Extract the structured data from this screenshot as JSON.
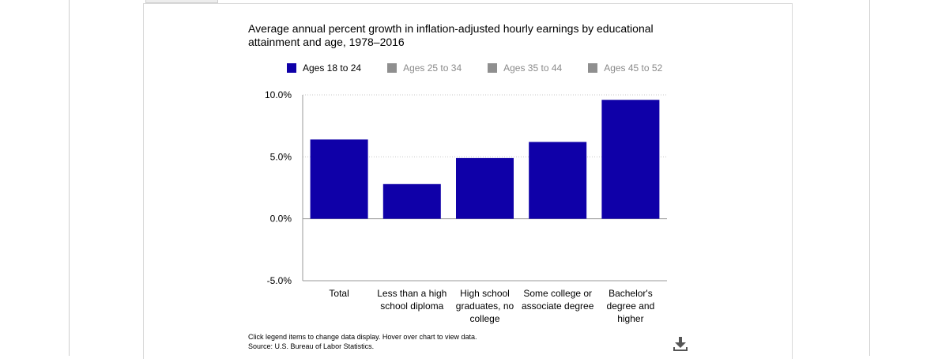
{
  "chart_data": {
    "type": "bar",
    "title": "Average annual percent growth in inflation-adjusted hourly earnings by educational attainment and age, 1978–2016",
    "categories": [
      [
        "Total"
      ],
      [
        "Less than a high",
        "school diploma"
      ],
      [
        "High school",
        "graduates, no",
        "college"
      ],
      [
        "Some college or",
        "associate degree"
      ],
      [
        "Bachelor's",
        "degree and",
        "higher"
      ]
    ],
    "series": [
      {
        "name": "Ages 18 to 24",
        "values": [
          6.4,
          2.8,
          4.9,
          6.2,
          9.6
        ],
        "active": true
      },
      {
        "name": "Ages 25 to 34",
        "active": false
      },
      {
        "name": "Ages 35 to 44",
        "active": false
      },
      {
        "name": "Ages 45 to 52",
        "active": false
      }
    ],
    "ylim": [
      -5,
      10
    ],
    "yticks": [
      "-5.0%",
      "0.0%",
      "5.0%",
      "10.0%"
    ],
    "ytick_values": [
      -5,
      0,
      5,
      10
    ],
    "grid": true,
    "legend_position": "top",
    "xlabel": "",
    "ylabel": ""
  },
  "colors": {
    "bar": "#0f00a8",
    "inactive_legend": "#8f8f8f",
    "grid": "#c8c8c8",
    "axis": "#9a9a9a"
  },
  "footer": {
    "instructions": "Click legend items to change data display. Hover over chart to view data.",
    "source": "Source: U.S. Bureau of Labor Statistics."
  },
  "icons": {
    "download": "download-icon"
  }
}
